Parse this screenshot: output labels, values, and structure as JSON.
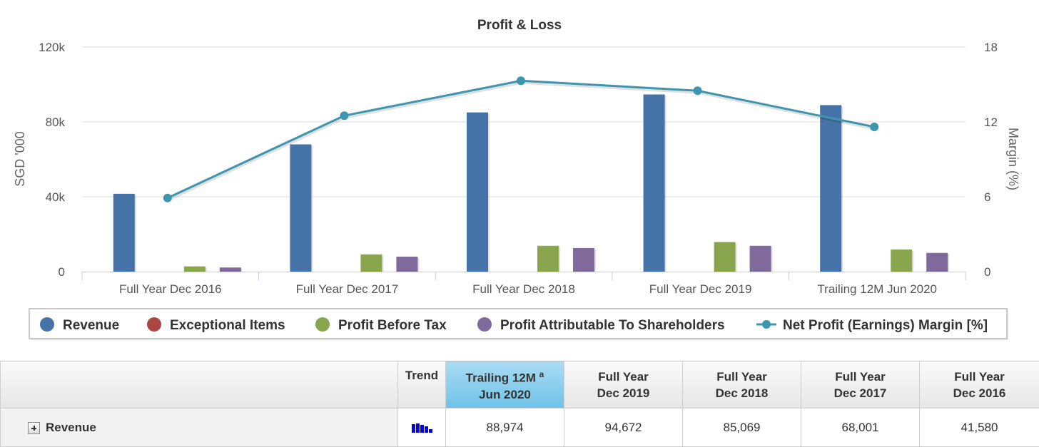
{
  "chart_data": {
    "type": "bar",
    "title": "Profit & Loss",
    "categories": [
      "Full Year Dec 2016",
      "Full Year Dec 2017",
      "Full Year Dec 2018",
      "Full Year Dec 2019",
      "Trailing 12M Jun 2020"
    ],
    "series": [
      {
        "name": "Revenue",
        "type": "bar",
        "axis": "left",
        "color": "#4572a7",
        "values": [
          41580,
          68001,
          85069,
          94672,
          88974
        ]
      },
      {
        "name": "Exceptional Items",
        "type": "bar",
        "axis": "left",
        "color": "#aa4643",
        "values": [
          0,
          0,
          0,
          0,
          0
        ]
      },
      {
        "name": "Profit Before Tax",
        "type": "bar",
        "axis": "left",
        "color": "#89a54e",
        "values": [
          2800,
          9200,
          13800,
          15800,
          11800
        ]
      },
      {
        "name": "Profit Attributable To Shareholders",
        "type": "bar",
        "axis": "left",
        "color": "#80699b",
        "values": [
          2200,
          8000,
          12600,
          13800,
          10000
        ]
      },
      {
        "name": "Net Profit (Earnings) Margin [%]",
        "type": "line",
        "axis": "right",
        "color": "#3d96ae",
        "values": [
          5.9,
          12.5,
          15.3,
          14.5,
          11.6
        ]
      }
    ],
    "y_left": {
      "label": "SGD '000",
      "ylim": [
        0,
        120000
      ],
      "ticks": [
        "0",
        "40k",
        "80k",
        "120k"
      ]
    },
    "y_right": {
      "label": "Margin (%)",
      "ylim": [
        0,
        18
      ],
      "ticks": [
        "0",
        "6",
        "12",
        "18"
      ]
    },
    "grid": true,
    "legend_position": "bottom"
  },
  "table": {
    "headers": {
      "trend": "Trend",
      "cols": [
        {
          "line1": "Trailing 12M",
          "sup": "a",
          "line2": "Jun 2020"
        },
        {
          "line1": "Full Year",
          "line2": "Dec 2019"
        },
        {
          "line1": "Full Year",
          "line2": "Dec 2018"
        },
        {
          "line1": "Full Year",
          "line2": "Dec 2017"
        },
        {
          "line1": "Full Year",
          "line2": "Dec 2016"
        }
      ]
    },
    "rows": [
      {
        "label": "Revenue",
        "values": [
          "88,974",
          "94,672",
          "85,069",
          "68,001",
          "41,580"
        ]
      }
    ]
  }
}
